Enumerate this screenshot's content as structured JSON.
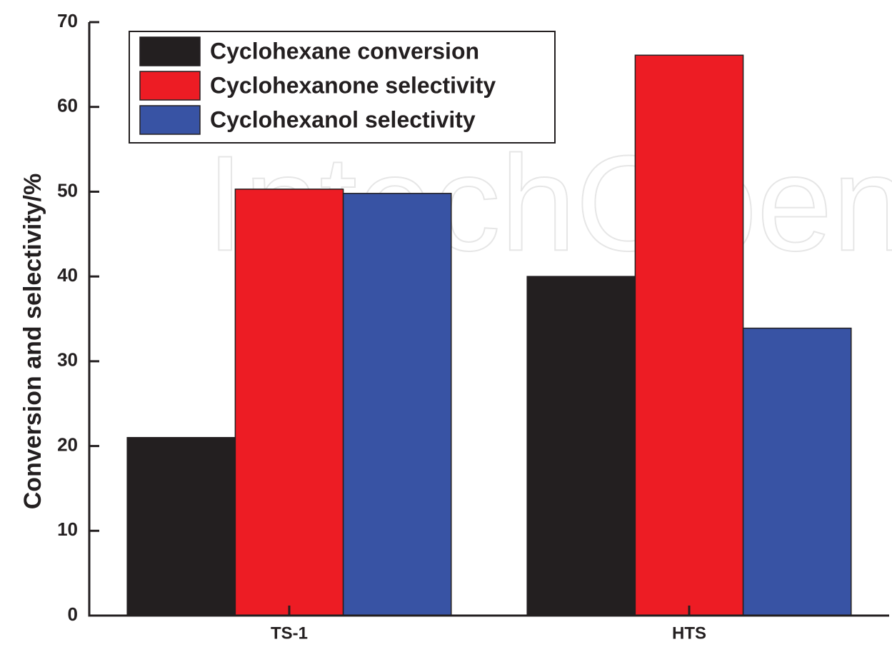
{
  "chart_data": {
    "type": "bar",
    "y_label": "Conversion and selectivity/%",
    "watermark": "IntechOpen",
    "categories": [
      "TS-1",
      "HTS"
    ],
    "series": [
      {
        "name": "Cyclohexane conversion",
        "color": "#231f20",
        "values": [
          21,
          40
        ]
      },
      {
        "name": "Cyclohexanone selectivity",
        "color": "#ed1c24",
        "values": [
          50.3,
          66.1
        ]
      },
      {
        "name": "Cyclohexanol selectivity",
        "color": "#3853a4",
        "values": [
          49.8,
          33.9
        ]
      }
    ],
    "ylim": [
      0,
      70
    ],
    "yticks": [
      0,
      10,
      20,
      30,
      40,
      50,
      60,
      70
    ],
    "grid": false,
    "legend": "upper left"
  }
}
